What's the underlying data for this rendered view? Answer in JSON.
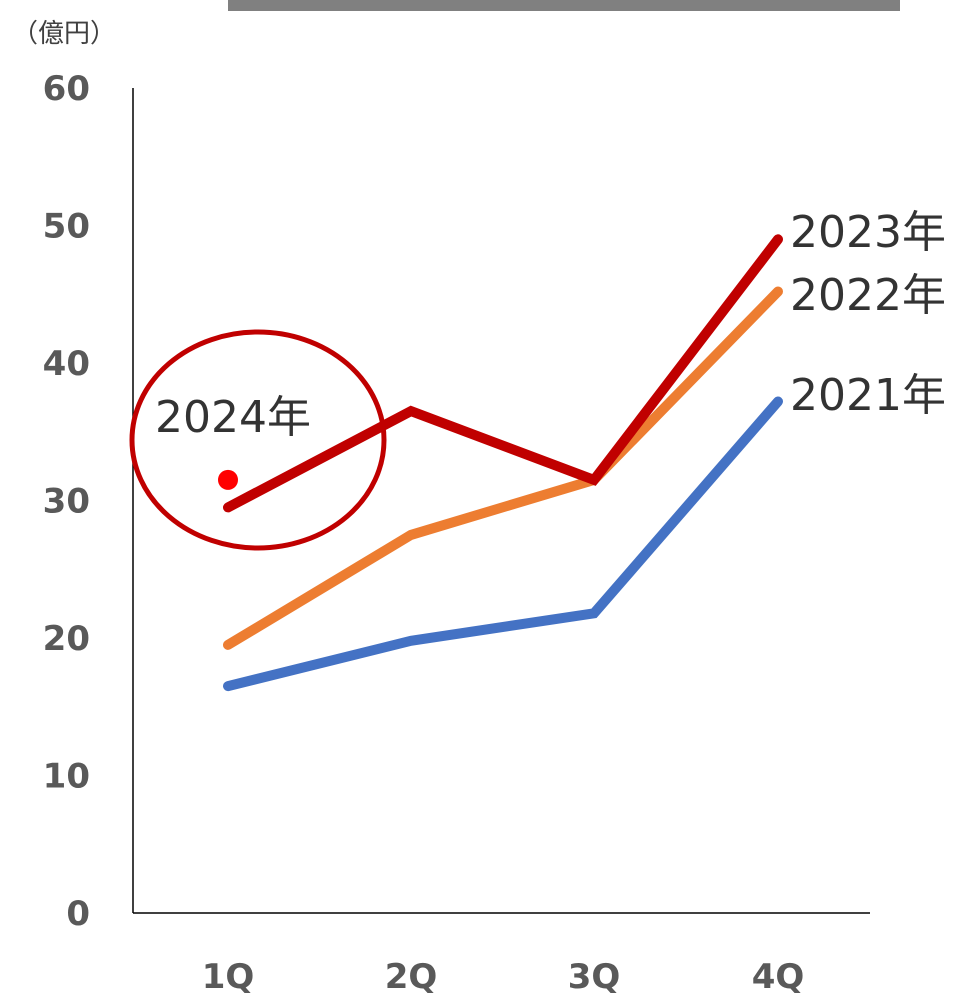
{
  "chart_data": {
    "type": "line",
    "ylabel": "（億円）",
    "ylim": [
      0,
      60
    ],
    "yticks": [
      "0",
      "10",
      "20",
      "30",
      "40",
      "50",
      "60"
    ],
    "categories": [
      "1Q",
      "2Q",
      "3Q",
      "4Q"
    ],
    "grid": false,
    "series": [
      {
        "name": "2021年",
        "color": "#4472C4",
        "values": [
          16.5,
          19.8,
          21.8,
          37.2
        ]
      },
      {
        "name": "2022年",
        "color": "#ED7D31",
        "values": [
          19.5,
          27.5,
          31.5,
          45.2
        ]
      },
      {
        "name": "2023年",
        "color": "#C00000",
        "values": [
          29.5,
          36.5,
          31.5,
          49.0
        ]
      }
    ],
    "highlight": {
      "label": "2024年",
      "category": "1Q",
      "value": 31.5,
      "color": "#FF0000",
      "circle_color": "#C00000"
    }
  }
}
